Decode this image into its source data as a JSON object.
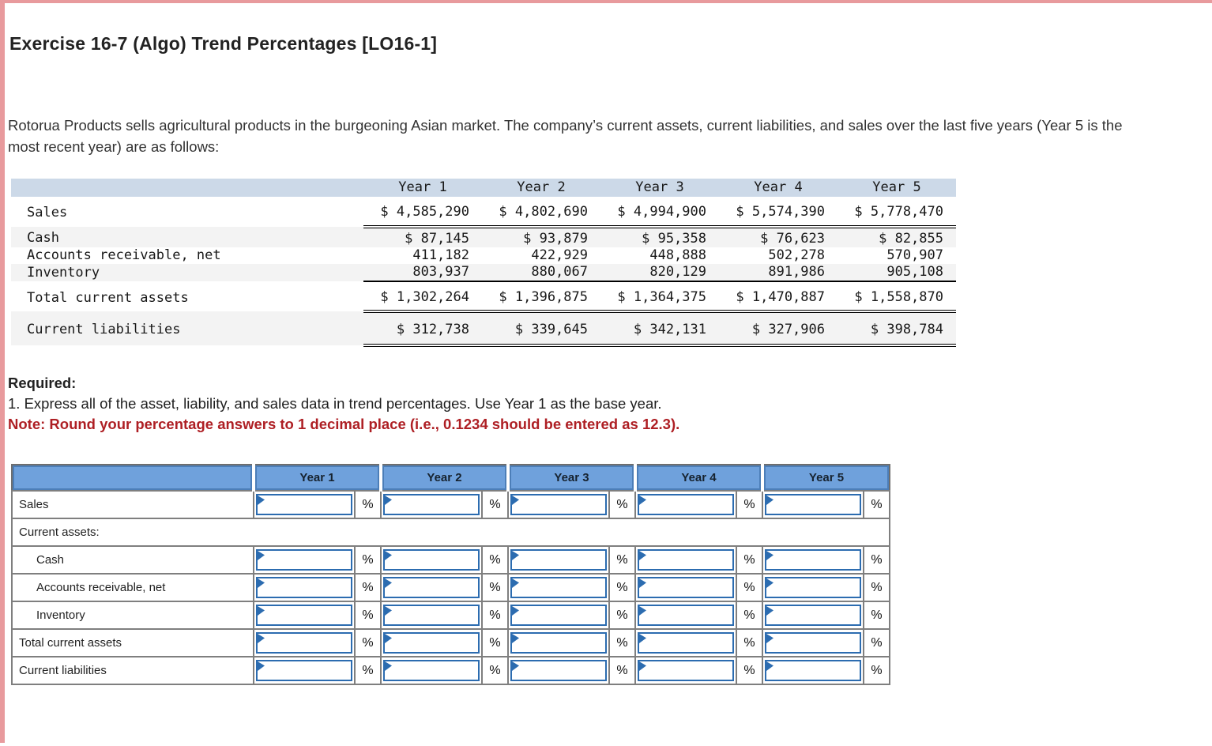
{
  "page": {
    "title": "Exercise 16-7 (Algo) Trend Percentages [LO16-1]",
    "intro": "Rotorua Products sells agricultural products in the burgeoning Asian market. The company’s current assets, current liabilities, and sales over the last five years (Year 5 is the most recent year) are as follows:"
  },
  "colors": {
    "accent_pink": "#e89a9d",
    "data_header_bg": "#ccd9e8",
    "answer_header_blue": "#6fa1dc",
    "input_border_blue": "#2c6cb0",
    "note_red": "#ae1f24",
    "shade_gray": "#f3f3f3"
  },
  "data_table": {
    "columns": [
      "Year 1",
      "Year 2",
      "Year 3",
      "Year 4",
      "Year 5"
    ],
    "rows": [
      {
        "label": "Sales",
        "values": [
          "$ 4,585,290",
          "$ 4,802,690",
          "$ 4,994,900",
          "$ 5,574,390",
          "$ 5,778,470"
        ]
      },
      {
        "label": "Cash",
        "values": [
          "$ 87,145",
          "$ 93,879",
          "$ 95,358",
          "$ 76,623",
          "$ 82,855"
        ]
      },
      {
        "label": "Accounts receivable, net",
        "values": [
          "411,182",
          "422,929",
          "448,888",
          "502,278",
          "570,907"
        ]
      },
      {
        "label": "Inventory",
        "values": [
          "803,937",
          "880,067",
          "820,129",
          "891,986",
          "905,108"
        ]
      },
      {
        "label": "Total current assets",
        "values": [
          "$ 1,302,264",
          "$ 1,396,875",
          "$ 1,364,375",
          "$ 1,470,887",
          "$ 1,558,870"
        ]
      },
      {
        "label": "Current liabilities",
        "values": [
          "$ 312,738",
          "$ 339,645",
          "$ 342,131",
          "$ 327,906",
          "$ 398,784"
        ]
      }
    ]
  },
  "required": {
    "heading": "Required:",
    "item1": "1. Express all of the asset, liability, and sales data in trend percentages. Use Year 1 as the base year.",
    "note": "Note: Round your percentage answers to 1 decimal place (i.e., 0.1234 should be entered as 12.3)."
  },
  "input_table": {
    "columns": [
      "Year 1",
      "Year 2",
      "Year 3",
      "Year 4",
      "Year 5"
    ],
    "percent": "%",
    "section_label": "Current assets:",
    "row_labels": {
      "sales": "Sales",
      "cash": "Cash",
      "ar": "Accounts receivable, net",
      "inventory": "Inventory",
      "total": "Total current assets",
      "liabilities": "Current liabilities"
    },
    "input_value": ""
  }
}
